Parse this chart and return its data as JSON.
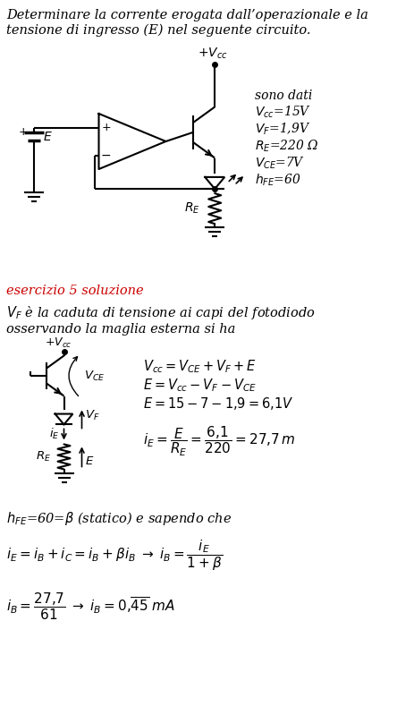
{
  "title_text": "Determinare la corrente erogata dall’operazionale e la\ntensione di ingresso (E) nel seguente circuito.",
  "sono_dati_label": "sono dati",
  "params": [
    "$V_{cc}$=15V",
    "$V_F$=1,9V",
    "$R_E$=220 Ω",
    "$V_{CE}$=7V",
    "$h_{FE}$=60"
  ],
  "esercizio_label": "esercizio 5 soluzione",
  "vf_text": "$V_F$ è la caduta di tensione ai capi del fotodiodo\nosservando la maglia esterna si ha",
  "eq1": "$V_{cc} = V_{CE} + V_F + E$",
  "eq2": "$E = V_{cc} - V_F - V_{CE}$",
  "eq3": "$E = 15 - 7 - 1{,}9 = 6{,}1V$",
  "eq4": "$i_E = \\dfrac{E}{R_E} = \\dfrac{6{,}1}{220} = 27{,}7\\,m$",
  "hfe_text": "$h_{FE}$=60=$\\beta$ (statico) e sapendo che",
  "eq5": "$i_E = i_B + i_C = i_B + \\beta i_B  \\;\\rightarrow\\;  i_B = \\dfrac{i_E}{1+\\beta}$",
  "eq6": "$i_B = \\dfrac{27{,}7}{61}  \\;\\rightarrow\\;  i_B = 0{,}\\overline{45}\\;mA$",
  "background_color": "#ffffff",
  "text_color": "#000000",
  "red_color": "#cc0000"
}
